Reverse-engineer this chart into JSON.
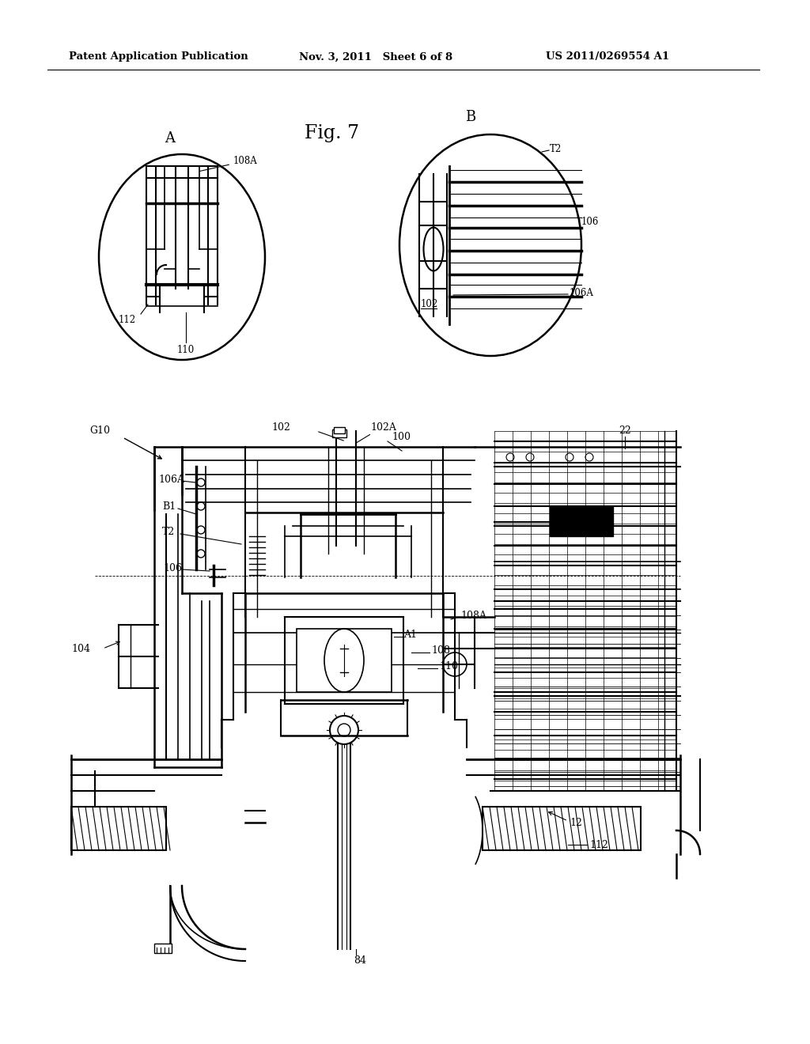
{
  "bg_color": "#ffffff",
  "header_left": "Patent Application Publication",
  "header_mid": "Nov. 3, 2011   Sheet 6 of 8",
  "header_right": "US 2011/0269554 A1",
  "fig_label": "Fig. 7",
  "label_A": "A",
  "label_B": "B",
  "labels": {
    "108A_circ": "108A",
    "110_circ": "110",
    "112_circ": "112",
    "T2_circ": "T2",
    "106_circ": "106",
    "102_circ": "102",
    "106A_circ": "106A",
    "G10": "G10",
    "22": "22",
    "100": "100",
    "102": "102",
    "102A": "102A",
    "B1": "B1",
    "T2": "T2",
    "106": "106",
    "106A": "106A",
    "104": "104",
    "108A": "108A",
    "108": "108",
    "110": "110",
    "A1": "A1",
    "12": "12",
    "84": "84",
    "112": "112"
  }
}
